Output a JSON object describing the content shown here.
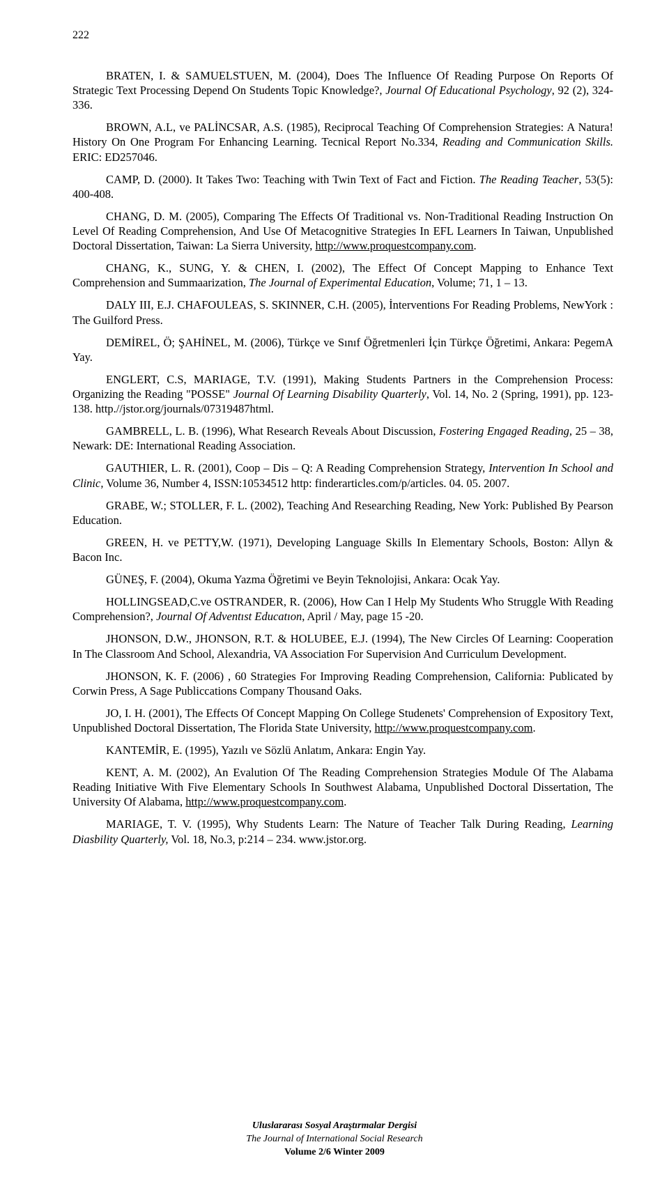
{
  "page_number": "222",
  "references": [
    {
      "html": "BRATEN, I. & SAMUELSTUEN, M. (2004), Does The Influence Of Reading Purpose On Reports Of Strategic Text Processing Depend On Students Topic Knowledge?, <i>Journal Of Educational Psychology</i>, 92 (2), 324- 336."
    },
    {
      "html": "BROWN, A.L, ve PALİNCSAR, A.S. (1985), Reciprocal Teaching Of Comprehension Strategies: A Natura! History On One Program For Enhancing Learning. Tecnical Report No.334, <i>Reading and Communication Skills.</i> ERIC: ED257046."
    },
    {
      "html": "CAMP, D. (2000). It Takes Two: Teaching with Twin Text of Fact and Fiction. <i>The Reading Teacher</i>, 53(5): 400-408."
    },
    {
      "html": "CHANG, D. M. (2005), Comparing The Effects Of Traditional vs. Non-Traditional Reading Instruction On Level Of Reading Comprehension, And Use Of Metacognitive Strategies In EFL Learners In Taiwan, Unpublished Doctoral Dissertation, Taiwan: La Sierra University, <span class=\"u\">http://www.proquestcompany.com</span>."
    },
    {
      "html": "CHANG, K., SUNG, Y. & CHEN, I. (2002), The Effect Of Concept Mapping to Enhance Text Comprehension and Summaarization, <i>The Journal of Experimental Education</i>, Volume; 71, 1 – 13."
    },
    {
      "html": "DALY III, E.J. CHAFOULEAS, S. SKINNER, C.H. (2005), İnterventions For Reading Problems, NewYork : The Guilford Press."
    },
    {
      "html": "DEMİREL, Ö; ŞAHİNEL, M. (2006), Türkçe ve Sınıf Öğretmenleri İçin Türkçe Öğretimi, Ankara: PegemA Yay."
    },
    {
      "html": "ENGLERT, C.S, MARIAGE, T.V. (1991), Making Students Partners in the Comprehension Process: Organizing the Reading \"POSSE\" <i>Journal Of Learning Disability Quarterly</i>, Vol. 14, No. 2 (Spring, 1991), pp. 123-138.  http.//jstor.org/journals/07319487html."
    },
    {
      "html": "GAMBRELL, L. B. (1996), What Research Reveals About Discussion, <i>Fostering Engaged Reading,</i> 25 – 38, Newark: DE: International Reading Association."
    },
    {
      "html": "GAUTHIER, L. R. (2001), Coop – Dis – Q: A Reading Comprehension Strategy, <i>Intervention In School and Clinic,</i> Volume 36, Number 4, ISSN:10534512 http: finderarticles.com/p/articles. 04. 05. 2007."
    },
    {
      "html": "GRABE, W.; STOLLER, F. L. (2002), Teaching And Researching Reading, New York: Published By Pearson Education."
    },
    {
      "html": "GREEN, H. ve PETTY,W. (1971), Developing Language Skills In Elementary Schools, Boston: Allyn & Bacon Inc."
    },
    {
      "html": "GÜNEŞ, F. (2004), Okuma Yazma Öğretimi ve Beyin Teknolojisi, Ankara: Ocak Yay."
    },
    {
      "html": "HOLLINGSEAD,C.ve OSTRANDER, R.  (2006), How Can I Help My Students Who Struggle With Reading Comprehension?, <i>Journal Of Adventıst Educatıon</i>, April / May, page 15 -20."
    },
    {
      "html": "JHONSON, D.W., JHONSON, R.T. & HOLUBEE, E.J. (1994), The New Circles Of Learning: Cooperation In The Classroom And School, Alexandria, VA Association For Supervision And Curriculum Development."
    },
    {
      "html": "JHONSON, K. F. (2006) , 60 Strategies For Improving Reading Comprehension, California: Publicated by Corwin Press,  A Sage Publiccations Company Thousand Oaks."
    },
    {
      "html": "JO, I. H. (2001), The Effects Of Concept Mapping On College Studenets' Comprehension of Expository Text, Unpublished Doctoral Dissertation, The Florida State University, <span class=\"u\">http://www.proquestcompany.com</span>."
    },
    {
      "html": "KANTEMİR, E. (1995), Yazılı ve Sözlü Anlatım, Ankara: Engin Yay."
    },
    {
      "html": "KENT, A. M. (2002), An Evalution Of The Reading Comprehension Strategies Module Of The Alabama Reading Initiative With Five Elementary Schools In Southwest Alabama, Unpublished Doctoral Dissertation, The University Of Alabama, <span class=\"u\">http://www.proquestcompany.com</span>."
    },
    {
      "html": "MARIAGE, T. V. (1995), Why Students Learn: The Nature of Teacher Talk During Reading, <i>Learning Diasbility Quarterly,</i> Vol. 18, No.3, p:214 – 234. www.jstor.org."
    }
  ],
  "footer": {
    "line1": "Uluslararası Sosyal Araştırmalar Dergisi",
    "line2": "The Journal of International Social Research",
    "line3": "Volume 2/6 Winter 2009"
  }
}
